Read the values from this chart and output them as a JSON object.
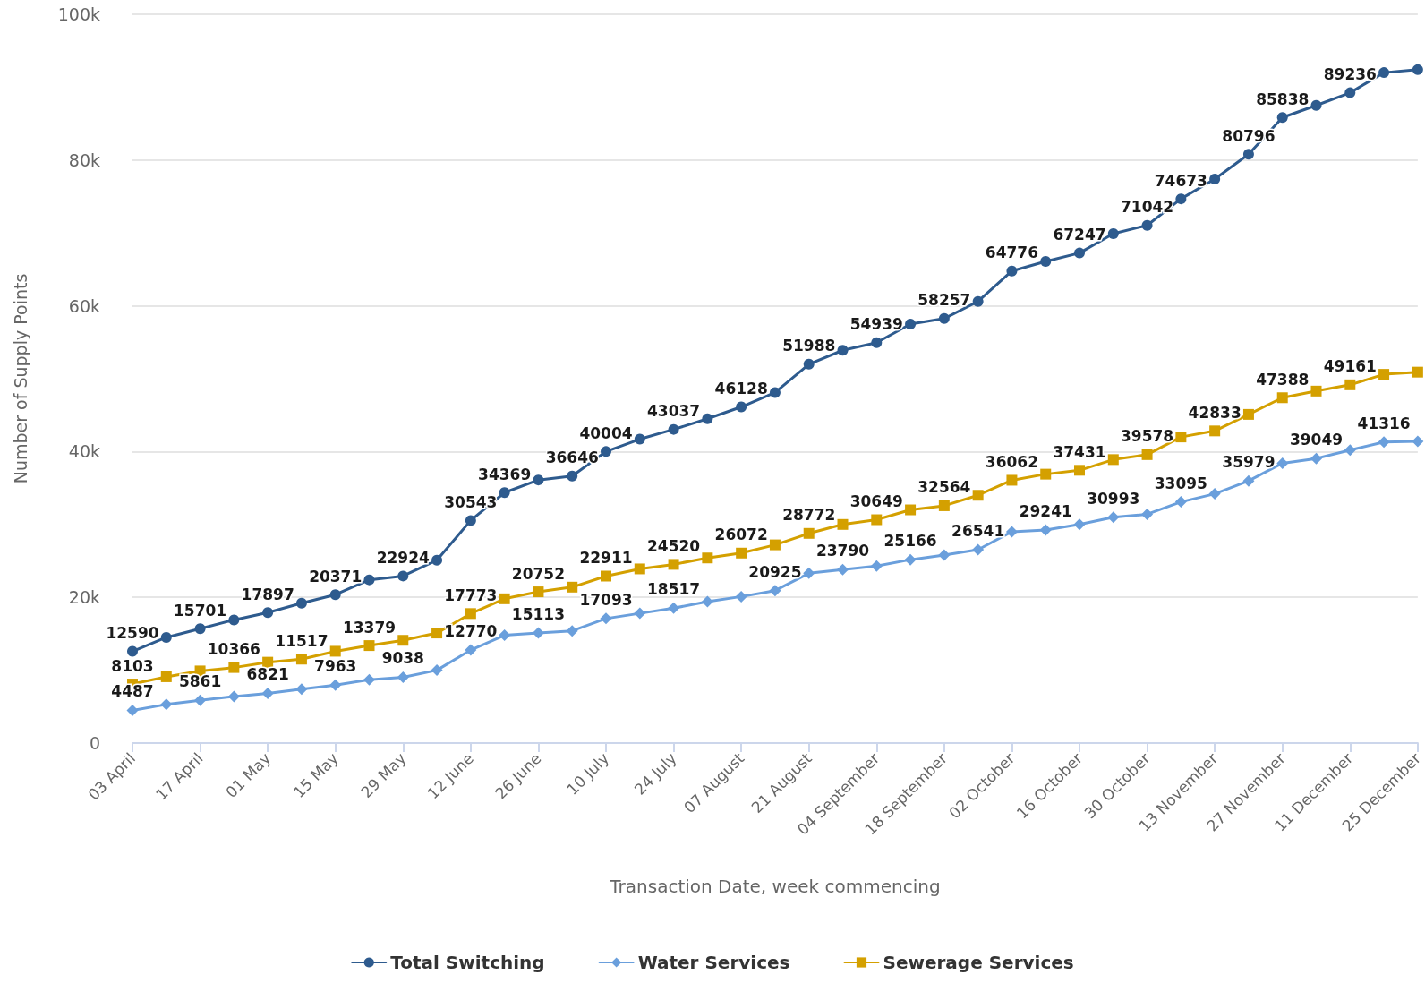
{
  "chart_data": {
    "type": "line",
    "xlabel": "Transaction Date, week commencing",
    "ylabel": "Number of Supply Points",
    "categories": [
      "03 April",
      null,
      "17 April",
      null,
      "01 May",
      null,
      "15 May",
      null,
      "29 May",
      null,
      "12 June",
      null,
      "26 June",
      null,
      "10 July",
      null,
      "24 July",
      null,
      "07 August",
      null,
      "21 August",
      null,
      "04 September",
      null,
      "18 September",
      null,
      "02 October",
      null,
      "16 October",
      null,
      "30 October",
      null,
      "13 November",
      null,
      "27 November",
      null,
      "11 December",
      null,
      "25 December"
    ],
    "ylim": [
      0,
      100000
    ],
    "yticks": [
      {
        "value": 0,
        "label": "0"
      },
      {
        "value": 20000,
        "label": "20k"
      },
      {
        "value": 40000,
        "label": "40k"
      },
      {
        "value": 60000,
        "label": "60k"
      },
      {
        "value": 80000,
        "label": "80k"
      },
      {
        "value": 100000,
        "label": "100k"
      }
    ],
    "grid": "y",
    "legend": "bottom",
    "line_style": "solid",
    "series": [
      {
        "name": "Total Switching",
        "color": "#2e5b8e",
        "marker": "circle",
        "values": [
          12590,
          14500,
          15701,
          16900,
          17897,
          19200,
          20371,
          22400,
          22924,
          25100,
          30543,
          34369,
          36100,
          36646,
          40004,
          41700,
          43037,
          44500,
          46128,
          48100,
          51988,
          53900,
          54939,
          57500,
          58257,
          60600,
          64776,
          66100,
          67247,
          69900,
          71042,
          74673,
          77400,
          80796,
          85838,
          87500,
          89236,
          92000,
          92400
        ],
        "value_labels": [
          "12590",
          null,
          "15701",
          null,
          "17897",
          null,
          "20371",
          null,
          "22924",
          null,
          "30543",
          "34369",
          null,
          "36646",
          "40004",
          null,
          "43037",
          null,
          "46128",
          null,
          "51988",
          null,
          "54939",
          null,
          "58257",
          null,
          "64776",
          null,
          "67247",
          null,
          "71042",
          "74673",
          null,
          "80796",
          "85838",
          null,
          "89236",
          null,
          null
        ]
      },
      {
        "name": "Water Services",
        "color": "#6a9fdc",
        "marker": "diamond",
        "values": [
          4487,
          5300,
          5861,
          6400,
          6821,
          7400,
          7963,
          8700,
          9038,
          10000,
          12770,
          14800,
          15113,
          15400,
          17093,
          17800,
          18517,
          19400,
          20100,
          20925,
          23300,
          23790,
          24300,
          25166,
          25800,
          26541,
          29000,
          29241,
          30000,
          30993,
          31400,
          33095,
          34200,
          35979,
          38400,
          39049,
          40200,
          41316,
          41400
        ],
        "value_labels": [
          "4487",
          null,
          "5861",
          null,
          "6821",
          null,
          "7963",
          null,
          "9038",
          null,
          "12770",
          null,
          "15113",
          null,
          "17093",
          null,
          "18517",
          null,
          null,
          "20925",
          null,
          "23790",
          null,
          "25166",
          null,
          "26541",
          null,
          "29241",
          null,
          "30993",
          null,
          "33095",
          null,
          "35979",
          null,
          "39049",
          null,
          "41316",
          null
        ]
      },
      {
        "name": "Sewerage Services",
        "color": "#d4a000",
        "marker": "square",
        "values": [
          8103,
          9100,
          9900,
          10366,
          11100,
          11517,
          12600,
          13379,
          14100,
          15100,
          17773,
          19800,
          20752,
          21400,
          22911,
          23900,
          24520,
          25400,
          26072,
          27200,
          28772,
          30000,
          30649,
          32000,
          32564,
          34000,
          36062,
          36900,
          37431,
          38900,
          39578,
          42000,
          42833,
          45100,
          47388,
          48300,
          49161,
          50600,
          50900
        ],
        "value_labels": [
          "8103",
          null,
          null,
          "10366",
          null,
          "11517",
          null,
          "13379",
          null,
          null,
          "17773",
          null,
          "20752",
          null,
          "22911",
          null,
          "24520",
          null,
          "26072",
          null,
          "28772",
          null,
          "30649",
          null,
          "32564",
          null,
          "36062",
          null,
          "37431",
          null,
          "39578",
          null,
          "42833",
          null,
          "47388",
          null,
          "49161",
          null,
          null
        ]
      }
    ]
  }
}
